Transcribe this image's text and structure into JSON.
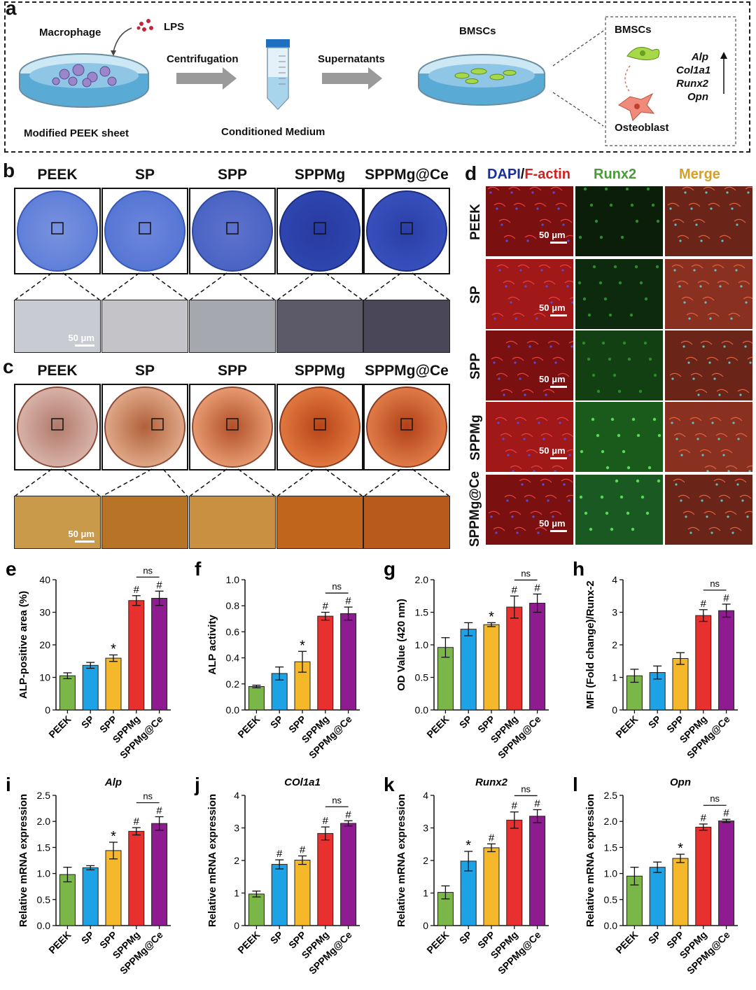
{
  "panel_a": {
    "label": "a",
    "macrophage": "Macrophage",
    "lps": "LPS",
    "centrifugation": "Centrifugation",
    "supernatants": "Supernatants",
    "bmscs": "BMSCs",
    "modified_peek": "Modified PEEK sheet",
    "conditioned_medium": "Conditioned Medium",
    "inset_bmscs": "BMSCs",
    "osteoblast": "Osteoblast",
    "genes": [
      "Alp",
      "Col1a1",
      "Runx2",
      "Opn"
    ]
  },
  "panel_b": {
    "label": "b",
    "groups": [
      "PEEK",
      "SP",
      "SPP",
      "SPPMg",
      "SPPMg@Ce"
    ],
    "scale": "50 μm"
  },
  "panel_c": {
    "label": "c",
    "groups": [
      "PEEK",
      "SP",
      "SPP",
      "SPPMg",
      "SPPMg@Ce"
    ],
    "scale": "50 μm"
  },
  "panel_d": {
    "label": "d",
    "col_dapi": "DAPI",
    "col_slash": "/",
    "col_factin": "F-actin",
    "col_runx2": "Runx2",
    "col_merge": "Merge",
    "rows": [
      "PEEK",
      "SP",
      "SPP",
      "SPPMg",
      "SPPMg@Ce"
    ],
    "scale": "50 μm"
  },
  "colors": {
    "PEEK": "#7ab648",
    "SP": "#1da2e6",
    "SPP": "#f5b82a",
    "SPPMg": "#e8302f",
    "SPPMg@Ce": "#8f1b90"
  },
  "chart_data": [
    {
      "id": "e",
      "type": "bar",
      "title": "",
      "ylabel": "ALP-positive area (%)",
      "categories": [
        "PEEK",
        "SP",
        "SPP",
        "SPPMg",
        "SPPMg@Ce"
      ],
      "values": [
        10.5,
        13.7,
        15.9,
        33.6,
        34.3
      ],
      "errors": [
        0.9,
        0.9,
        1.0,
        1.5,
        2.2
      ],
      "ylim": [
        0,
        40
      ],
      "yticks": [
        0,
        10,
        20,
        30,
        40
      ],
      "marks": [
        "",
        "",
        "*",
        "#",
        "#"
      ],
      "ns": "ns"
    },
    {
      "id": "f",
      "type": "bar",
      "title": "",
      "ylabel": "ALP activity",
      "categories": [
        "PEEK",
        "SP",
        "SPP",
        "SPPMg",
        "SPPMg@Ce"
      ],
      "values": [
        0.18,
        0.28,
        0.37,
        0.72,
        0.74
      ],
      "errors": [
        0.01,
        0.05,
        0.08,
        0.03,
        0.05
      ],
      "ylim": [
        0,
        1.0
      ],
      "yticks": [
        0.0,
        0.2,
        0.4,
        0.6,
        0.8,
        1.0
      ],
      "marks": [
        "",
        "",
        "*",
        "#",
        "#"
      ],
      "ns": "ns"
    },
    {
      "id": "g",
      "type": "bar",
      "title": "",
      "ylabel": "OD Value (420 nm)",
      "categories": [
        "PEEK",
        "SP",
        "SPP",
        "SPPMg",
        "SPPMg@Ce"
      ],
      "values": [
        0.96,
        1.24,
        1.31,
        1.58,
        1.64
      ],
      "errors": [
        0.15,
        0.1,
        0.03,
        0.17,
        0.14
      ],
      "ylim": [
        0,
        2.0
      ],
      "yticks": [
        0.0,
        0.5,
        1.0,
        1.5,
        2.0
      ],
      "marks": [
        "",
        "",
        "*",
        "#",
        "#"
      ],
      "ns": "ns"
    },
    {
      "id": "h",
      "type": "bar",
      "title": "",
      "ylabel": "MFI (Fold change)/Runx-2",
      "categories": [
        "PEEK",
        "SP",
        "SPP",
        "SPPMg",
        "SPPMg@Ce"
      ],
      "values": [
        1.05,
        1.15,
        1.58,
        2.9,
        3.05
      ],
      "errors": [
        0.2,
        0.2,
        0.18,
        0.18,
        0.2
      ],
      "ylim": [
        0,
        4
      ],
      "yticks": [
        0,
        1,
        2,
        3,
        4
      ],
      "marks": [
        "",
        "",
        "",
        "#",
        "#"
      ],
      "ns": "ns"
    },
    {
      "id": "i",
      "type": "bar",
      "title": "Alp",
      "ylabel": "Relative mRNA expression",
      "categories": [
        "PEEK",
        "SP",
        "SPP",
        "SPPMg",
        "SPPMg@Ce"
      ],
      "values": [
        0.98,
        1.11,
        1.44,
        1.81,
        1.96
      ],
      "errors": [
        0.14,
        0.04,
        0.16,
        0.07,
        0.13
      ],
      "ylim": [
        0,
        2.5
      ],
      "yticks": [
        0.0,
        0.5,
        1.0,
        1.5,
        2.0,
        2.5
      ],
      "marks": [
        "",
        "",
        "*",
        "#",
        "#"
      ],
      "ns": "ns"
    },
    {
      "id": "j",
      "type": "bar",
      "title": "COl1a1",
      "ylabel": "Relative mRNA expression",
      "categories": [
        "PEEK",
        "SP",
        "SPP",
        "SPPMg",
        "SPPMg@Ce"
      ],
      "values": [
        0.97,
        1.88,
        2.01,
        2.83,
        3.14
      ],
      "errors": [
        0.09,
        0.14,
        0.13,
        0.2,
        0.08
      ],
      "ylim": [
        0,
        4
      ],
      "yticks": [
        0,
        1,
        2,
        3,
        4
      ],
      "marks": [
        "",
        "#",
        "#",
        "#",
        "#"
      ],
      "ns": "ns"
    },
    {
      "id": "k",
      "type": "bar",
      "title": "Runx2",
      "ylabel": "Relative mRNA expression",
      "categories": [
        "PEEK",
        "SP",
        "SPP",
        "SPPMg",
        "SPPMg@Ce"
      ],
      "values": [
        1.02,
        1.98,
        2.39,
        3.24,
        3.36
      ],
      "errors": [
        0.2,
        0.3,
        0.12,
        0.25,
        0.2
      ],
      "ylim": [
        0,
        4
      ],
      "yticks": [
        0,
        1,
        2,
        3,
        4
      ],
      "marks": [
        "",
        "*",
        "#",
        "#",
        "#"
      ],
      "ns": "ns"
    },
    {
      "id": "l",
      "type": "bar",
      "title": "Opn",
      "ylabel": "Relative mRNA expression",
      "categories": [
        "PEEK",
        "SP",
        "SPP",
        "SPPMg",
        "SPPMg@Ce"
      ],
      "values": [
        0.95,
        1.12,
        1.29,
        1.89,
        2.01
      ],
      "errors": [
        0.17,
        0.1,
        0.08,
        0.06,
        0.03
      ],
      "ylim": [
        0,
        2.5
      ],
      "yticks": [
        0.0,
        0.5,
        1.0,
        1.5,
        2.0,
        2.5
      ],
      "marks": [
        "",
        "",
        "*",
        "#",
        "#"
      ],
      "ns": "ns"
    }
  ]
}
